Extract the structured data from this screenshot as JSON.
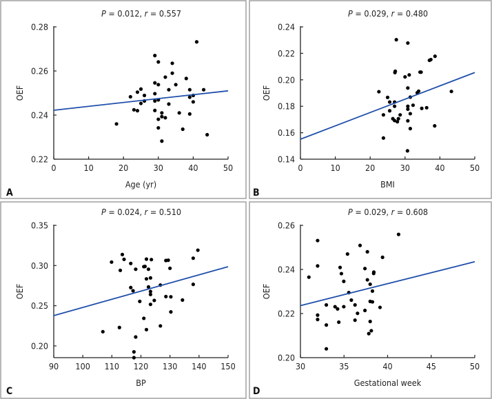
{
  "colors": {
    "line": "#1f4faa",
    "point": "#000000",
    "axis": "#222222",
    "border": "#a0a0a0"
  },
  "chart_data": [
    {
      "type": "scatter",
      "panel": "A",
      "title": {
        "p_label": "P",
        "p_value": "0.012",
        "r_label": "r",
        "r_value": "0.557"
      },
      "xlabel": "Age (yr)",
      "ylabel": "OEF",
      "xlim": [
        0,
        50
      ],
      "ylim": [
        0.22,
        0.28
      ],
      "xticks": [
        0,
        10,
        20,
        30,
        40,
        50
      ],
      "xtick_labels": [
        "0",
        "10",
        "20",
        "30",
        "40",
        "50"
      ],
      "yticks": [
        0.22,
        0.24,
        0.26,
        0.28
      ],
      "ytick_labels": [
        "0.22",
        "0.24",
        "0.26",
        "0.28"
      ],
      "fit_line": [
        [
          0,
          0.2422
        ],
        [
          50,
          0.251
        ]
      ],
      "points": [
        [
          18,
          0.236
        ],
        [
          22,
          0.2483
        ],
        [
          23,
          0.2424
        ],
        [
          24,
          0.2504
        ],
        [
          24,
          0.242
        ],
        [
          25,
          0.2518
        ],
        [
          25,
          0.2453
        ],
        [
          26,
          0.2489
        ],
        [
          26,
          0.2464
        ],
        [
          29,
          0.267
        ],
        [
          29,
          0.2546
        ],
        [
          29,
          0.2497
        ],
        [
          29,
          0.2464
        ],
        [
          29,
          0.2421
        ],
        [
          30,
          0.2641
        ],
        [
          30,
          0.2538
        ],
        [
          30,
          0.2469
        ],
        [
          30,
          0.2381
        ],
        [
          30,
          0.2342
        ],
        [
          31,
          0.241
        ],
        [
          31,
          0.2393
        ],
        [
          31,
          0.2282
        ],
        [
          32,
          0.2572
        ],
        [
          32,
          0.2388
        ],
        [
          33,
          0.2515
        ],
        [
          33,
          0.245
        ],
        [
          34,
          0.2635
        ],
        [
          34,
          0.259
        ],
        [
          35,
          0.2538
        ],
        [
          36,
          0.241
        ],
        [
          37,
          0.2336
        ],
        [
          38,
          0.2566
        ],
        [
          39,
          0.2515
        ],
        [
          39,
          0.2481
        ],
        [
          39,
          0.2405
        ],
        [
          40,
          0.2489
        ],
        [
          40,
          0.246
        ],
        [
          41,
          0.2732
        ],
        [
          43,
          0.2515
        ],
        [
          44,
          0.2311
        ]
      ]
    },
    {
      "type": "scatter",
      "panel": "B",
      "title": {
        "p_label": "P",
        "p_value": "0.029",
        "r_label": "r",
        "r_value": "0.480"
      },
      "xlabel": "BMI",
      "ylabel": "OEF",
      "xlim": [
        0,
        50
      ],
      "ylim": [
        0.14,
        0.24
      ],
      "xticks": [
        0,
        10,
        20,
        30,
        40,
        50
      ],
      "xtick_labels": [
        "0",
        "10",
        "20",
        "30",
        "40",
        "50"
      ],
      "yticks": [
        0.14,
        0.16,
        0.18,
        0.2,
        0.22,
        0.24
      ],
      "ytick_labels": [
        "0.14",
        "0.16",
        "0.18",
        "0.20",
        "0.22",
        "0.24"
      ],
      "fit_line": [
        [
          0,
          0.1551
        ],
        [
          50,
          0.2055
        ]
      ],
      "points": [
        [
          22.5,
          0.191
        ],
        [
          23.8,
          0.1735
        ],
        [
          23.8,
          0.156
        ],
        [
          25,
          0.1867
        ],
        [
          25.6,
          0.1832
        ],
        [
          25.6,
          0.1766
        ],
        [
          27.5,
          0.2303
        ],
        [
          26.5,
          0.1706
        ],
        [
          27,
          0.1692
        ],
        [
          27,
          0.18
        ],
        [
          27,
          0.1832
        ],
        [
          27.2,
          0.2065
        ],
        [
          27.1,
          0.2055
        ],
        [
          27.8,
          0.1683
        ],
        [
          28.1,
          0.1706
        ],
        [
          28.6,
          0.1735
        ],
        [
          30,
          0.2022
        ],
        [
          30.8,
          0.2278
        ],
        [
          30.8,
          0.1938
        ],
        [
          30.8,
          0.18
        ],
        [
          30.8,
          0.1778
        ],
        [
          30.8,
          0.169
        ],
        [
          31.2,
          0.2037
        ],
        [
          31.5,
          0.1869
        ],
        [
          31.5,
          0.1744
        ],
        [
          31.5,
          0.1631
        ],
        [
          32.3,
          0.1808
        ],
        [
          30.7,
          0.1463
        ],
        [
          33.5,
          0.1902
        ],
        [
          33.9,
          0.1914
        ],
        [
          34.3,
          0.2058
        ],
        [
          34.6,
          0.2058
        ],
        [
          34.8,
          0.1784
        ],
        [
          36.2,
          0.1789
        ],
        [
          37.0,
          0.2147
        ],
        [
          37.4,
          0.2153
        ],
        [
          38.6,
          0.2178
        ],
        [
          38.5,
          0.1652
        ],
        [
          43.3,
          0.1912
        ]
      ]
    },
    {
      "type": "scatter",
      "panel": "C",
      "title": {
        "p_label": "P",
        "p_value": "0.024",
        "r_label": "r",
        "r_value": "0.510"
      },
      "xlabel": "BP",
      "ylabel": "OEF",
      "xlim": [
        90,
        150
      ],
      "ylim": [
        0.1854,
        0.35
      ],
      "xticks": [
        90,
        100,
        110,
        120,
        130,
        140,
        150
      ],
      "xtick_labels": [
        "90",
        "100",
        "110",
        "120",
        "130",
        "140",
        "150"
      ],
      "yticks": [
        0.2,
        0.25,
        0.3,
        0.35
      ],
      "ytick_labels": [
        "0.20",
        "0.25",
        "0.30",
        "0.35"
      ],
      "fit_line": [
        [
          90,
          0.2377
        ],
        [
          150,
          0.2986
        ]
      ],
      "points": [
        [
          106.9,
          0.2177
        ],
        [
          109.9,
          0.3043
        ],
        [
          112.6,
          0.2229
        ],
        [
          112.9,
          0.294
        ],
        [
          113.6,
          0.3137
        ],
        [
          114.2,
          0.3077
        ],
        [
          116.5,
          0.3026
        ],
        [
          116.5,
          0.2726
        ],
        [
          117.3,
          0.2686
        ],
        [
          117.6,
          0.1926
        ],
        [
          117.6,
          0.1854
        ],
        [
          118.2,
          0.2111
        ],
        [
          118.2,
          0.2954
        ],
        [
          119.6,
          0.2554
        ],
        [
          121.0,
          0.2343
        ],
        [
          121.0,
          0.2986
        ],
        [
          121.4,
          0.2989
        ],
        [
          121.9,
          0.308
        ],
        [
          121.9,
          0.2834
        ],
        [
          121.9,
          0.2203
        ],
        [
          122.6,
          0.2954
        ],
        [
          122.6,
          0.2734
        ],
        [
          123.3,
          0.2846
        ],
        [
          123.3,
          0.2677
        ],
        [
          123.3,
          0.264
        ],
        [
          123.3,
          0.2517
        ],
        [
          123.6,
          0.3074
        ],
        [
          124.6,
          0.2566
        ],
        [
          126.7,
          0.2757
        ],
        [
          126.7,
          0.2249
        ],
        [
          128.6,
          0.3063
        ],
        [
          128.6,
          0.2614
        ],
        [
          129.4,
          0.3066
        ],
        [
          130.0,
          0.2966
        ],
        [
          130.3,
          0.2611
        ],
        [
          130.3,
          0.2423
        ],
        [
          134.3,
          0.2571
        ],
        [
          138.0,
          0.3091
        ],
        [
          138.0,
          0.2766
        ],
        [
          139.6,
          0.3191
        ]
      ]
    },
    {
      "type": "scatter",
      "panel": "D",
      "title": {
        "p_label": "P",
        "p_value": "0.029",
        "r_label": "r",
        "r_value": "0.608"
      },
      "xlabel": "Gestational week",
      "ylabel": "OEF",
      "xlim": [
        30,
        50
      ],
      "ylim": [
        0.2,
        0.26
      ],
      "xticks": [
        30,
        35,
        40,
        45,
        50
      ],
      "xtick_labels": [
        "30",
        "35",
        "40",
        "45",
        "50"
      ],
      "yticks": [
        0.2,
        0.22,
        0.24,
        0.26
      ],
      "ytick_labels": [
        "0.20",
        "0.22",
        "0.24",
        "0.26"
      ],
      "fit_line": [
        [
          30,
          0.2236
        ],
        [
          50,
          0.2435
        ]
      ],
      "points": [
        [
          30.97,
          0.2365
        ],
        [
          31.97,
          0.2531
        ],
        [
          31.97,
          0.2416
        ],
        [
          31.97,
          0.2193
        ],
        [
          31.97,
          0.2173
        ],
        [
          32.97,
          0.2239
        ],
        [
          32.97,
          0.2148
        ],
        [
          32.97,
          0.204
        ],
        [
          33.97,
          0.2231
        ],
        [
          34.26,
          0.2221
        ],
        [
          34.4,
          0.2161
        ],
        [
          34.55,
          0.2409
        ],
        [
          34.7,
          0.2381
        ],
        [
          34.97,
          0.2346
        ],
        [
          34.97,
          0.2231
        ],
        [
          35.4,
          0.247
        ],
        [
          35.55,
          0.2295
        ],
        [
          35.84,
          0.2261
        ],
        [
          36.26,
          0.2239
        ],
        [
          36.26,
          0.217
        ],
        [
          36.55,
          0.2201
        ],
        [
          36.84,
          0.2509
        ],
        [
          37.4,
          0.2214
        ],
        [
          37.4,
          0.2404
        ],
        [
          37.68,
          0.248
        ],
        [
          37.68,
          0.2353
        ],
        [
          37.84,
          0.2109
        ],
        [
          38.0,
          0.2333
        ],
        [
          38.0,
          0.2255
        ],
        [
          38.0,
          0.2164
        ],
        [
          38.13,
          0.2122
        ],
        [
          38.26,
          0.2302
        ],
        [
          38.26,
          0.2253
        ],
        [
          38.4,
          0.2382
        ],
        [
          38.42,
          0.2388
        ],
        [
          39.13,
          0.2228
        ],
        [
          39.42,
          0.2455
        ],
        [
          41.26,
          0.2559
        ]
      ]
    }
  ]
}
